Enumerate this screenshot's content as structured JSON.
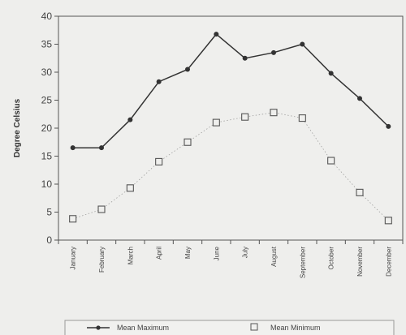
{
  "chart_data": {
    "type": "line",
    "ylabel": "Degree Celsius",
    "ylim": [
      0,
      40
    ],
    "yticks": [
      0,
      5,
      10,
      15,
      20,
      25,
      30,
      35,
      40
    ],
    "grid": false,
    "legend": "bottom",
    "categories": [
      "January",
      "February",
      "March",
      "April",
      "May",
      "June",
      "July",
      "August",
      "September",
      "October",
      "November",
      "December"
    ],
    "series": [
      {
        "name": "Mean Maximum",
        "marker": "filled-circle",
        "line": "solid",
        "color": "#333333",
        "values": [
          16.5,
          16.5,
          21.5,
          28.3,
          30.5,
          36.8,
          32.5,
          33.5,
          35.0,
          29.8,
          25.3,
          20.3
        ]
      },
      {
        "name": "Mean Minimum",
        "marker": "hollow-square",
        "line": "dotted",
        "color": "#555555",
        "values": [
          3.8,
          5.5,
          9.3,
          14.0,
          17.5,
          21.0,
          22.0,
          22.8,
          21.8,
          14.2,
          8.5,
          3.5
        ]
      }
    ]
  }
}
